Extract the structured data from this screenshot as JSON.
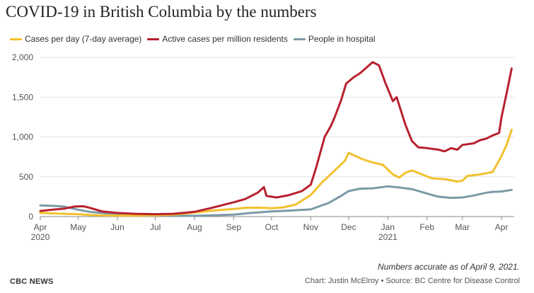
{
  "chart_data": {
    "type": "line",
    "title": "COVID-19 in British Columbia by the numbers",
    "xlabel": "",
    "ylabel": "",
    "x_range": [
      "2020-04-01",
      "2021-04-11"
    ],
    "ylim": [
      0,
      2000
    ],
    "y_ticks": [
      "0",
      "500",
      "1,000",
      "1,500",
      "2,000"
    ],
    "grid": true,
    "legend_position": "top-left",
    "x_ticks": [
      {
        "date": "2020-04-01",
        "label": "Apr",
        "sub": "2020"
      },
      {
        "date": "2020-05-01",
        "label": "May",
        "sub": ""
      },
      {
        "date": "2020-06-01",
        "label": "Jun",
        "sub": ""
      },
      {
        "date": "2020-07-01",
        "label": "Jul",
        "sub": ""
      },
      {
        "date": "2020-08-01",
        "label": "Aug",
        "sub": ""
      },
      {
        "date": "2020-09-01",
        "label": "Sep",
        "sub": ""
      },
      {
        "date": "2020-10-01",
        "label": "Oct",
        "sub": ""
      },
      {
        "date": "2020-11-01",
        "label": "Nov",
        "sub": ""
      },
      {
        "date": "2020-12-01",
        "label": "Dec",
        "sub": ""
      },
      {
        "date": "2021-01-01",
        "label": "Jan",
        "sub": "2021"
      },
      {
        "date": "2021-02-01",
        "label": "Feb",
        "sub": ""
      },
      {
        "date": "2021-03-01",
        "label": "Mar",
        "sub": ""
      },
      {
        "date": "2021-04-01",
        "label": "Apr",
        "sub": ""
      }
    ],
    "series": [
      {
        "name": "Cases per day (7-day average)",
        "color": "#f2c12e",
        "points": [
          [
            "2020-04-01",
            45
          ],
          [
            "2020-04-10",
            40
          ],
          [
            "2020-04-20",
            35
          ],
          [
            "2020-05-01",
            30
          ],
          [
            "2020-05-10",
            20
          ],
          [
            "2020-05-20",
            14
          ],
          [
            "2020-06-01",
            12
          ],
          [
            "2020-06-15",
            12
          ],
          [
            "2020-07-01",
            15
          ],
          [
            "2020-07-15",
            25
          ],
          [
            "2020-08-01",
            50
          ],
          [
            "2020-08-15",
            75
          ],
          [
            "2020-09-01",
            95
          ],
          [
            "2020-09-10",
            110
          ],
          [
            "2020-09-20",
            112
          ],
          [
            "2020-10-01",
            105
          ],
          [
            "2020-10-10",
            115
          ],
          [
            "2020-10-20",
            150
          ],
          [
            "2020-11-01",
            270
          ],
          [
            "2020-11-10",
            430
          ],
          [
            "2020-11-20",
            580
          ],
          [
            "2020-11-28",
            700
          ],
          [
            "2020-12-01",
            800
          ],
          [
            "2020-12-05",
            770
          ],
          [
            "2020-12-12",
            720
          ],
          [
            "2020-12-20",
            680
          ],
          [
            "2020-12-28",
            650
          ],
          [
            "2021-01-05",
            530
          ],
          [
            "2021-01-10",
            490
          ],
          [
            "2021-01-15",
            550
          ],
          [
            "2021-01-20",
            580
          ],
          [
            "2021-01-28",
            530
          ],
          [
            "2021-02-05",
            480
          ],
          [
            "2021-02-15",
            470
          ],
          [
            "2021-02-25",
            440
          ],
          [
            "2021-03-01",
            450
          ],
          [
            "2021-03-05",
            510
          ],
          [
            "2021-03-15",
            530
          ],
          [
            "2021-03-25",
            560
          ],
          [
            "2021-04-01",
            760
          ],
          [
            "2021-04-05",
            900
          ],
          [
            "2021-04-09",
            1090
          ]
        ]
      },
      {
        "name": "Active cases per million residents",
        "color": "#b8212f",
        "points": [
          [
            "2020-04-01",
            70
          ],
          [
            "2020-04-10",
            85
          ],
          [
            "2020-04-20",
            100
          ],
          [
            "2020-04-28",
            125
          ],
          [
            "2020-05-05",
            130
          ],
          [
            "2020-05-10",
            110
          ],
          [
            "2020-05-20",
            65
          ],
          [
            "2020-06-01",
            45
          ],
          [
            "2020-06-15",
            35
          ],
          [
            "2020-07-01",
            30
          ],
          [
            "2020-07-15",
            35
          ],
          [
            "2020-08-01",
            60
          ],
          [
            "2020-08-15",
            110
          ],
          [
            "2020-09-01",
            180
          ],
          [
            "2020-09-10",
            220
          ],
          [
            "2020-09-20",
            300
          ],
          [
            "2020-09-25",
            370
          ],
          [
            "2020-09-27",
            260
          ],
          [
            "2020-10-05",
            240
          ],
          [
            "2020-10-15",
            270
          ],
          [
            "2020-10-25",
            320
          ],
          [
            "2020-11-01",
            400
          ],
          [
            "2020-11-05",
            600
          ],
          [
            "2020-11-12",
            1000
          ],
          [
            "2020-11-17",
            1140
          ],
          [
            "2020-11-20",
            1250
          ],
          [
            "2020-11-25",
            1460
          ],
          [
            "2020-11-29",
            1670
          ],
          [
            "2020-12-05",
            1750
          ],
          [
            "2020-12-10",
            1800
          ],
          [
            "2020-12-15",
            1870
          ],
          [
            "2020-12-20",
            1940
          ],
          [
            "2020-12-25",
            1900
          ],
          [
            "2020-12-30",
            1680
          ],
          [
            "2021-01-05",
            1450
          ],
          [
            "2021-01-08",
            1500
          ],
          [
            "2021-01-15",
            1150
          ],
          [
            "2021-01-20",
            950
          ],
          [
            "2021-01-25",
            870
          ],
          [
            "2021-02-01",
            860
          ],
          [
            "2021-02-10",
            840
          ],
          [
            "2021-02-15",
            820
          ],
          [
            "2021-02-20",
            860
          ],
          [
            "2021-02-25",
            840
          ],
          [
            "2021-03-01",
            900
          ],
          [
            "2021-03-10",
            920
          ],
          [
            "2021-03-15",
            960
          ],
          [
            "2021-03-20",
            980
          ],
          [
            "2021-03-25",
            1020
          ],
          [
            "2021-03-30",
            1050
          ],
          [
            "2021-04-01",
            1250
          ],
          [
            "2021-04-05",
            1550
          ],
          [
            "2021-04-09",
            1860
          ]
        ]
      },
      {
        "name": "People in hospital",
        "color": "#7b9aa6",
        "points": [
          [
            "2020-04-01",
            140
          ],
          [
            "2020-04-10",
            135
          ],
          [
            "2020-04-20",
            125
          ],
          [
            "2020-05-01",
            85
          ],
          [
            "2020-05-10",
            60
          ],
          [
            "2020-05-20",
            45
          ],
          [
            "2020-06-01",
            30
          ],
          [
            "2020-06-15",
            20
          ],
          [
            "2020-07-01",
            15
          ],
          [
            "2020-07-15",
            12
          ],
          [
            "2020-08-01",
            10
          ],
          [
            "2020-08-15",
            15
          ],
          [
            "2020-09-01",
            25
          ],
          [
            "2020-09-15",
            45
          ],
          [
            "2020-10-01",
            65
          ],
          [
            "2020-10-15",
            75
          ],
          [
            "2020-11-01",
            90
          ],
          [
            "2020-11-15",
            170
          ],
          [
            "2020-11-25",
            260
          ],
          [
            "2020-12-01",
            320
          ],
          [
            "2020-12-10",
            350
          ],
          [
            "2020-12-20",
            355
          ],
          [
            "2021-01-01",
            380
          ],
          [
            "2021-01-10",
            365
          ],
          [
            "2021-01-20",
            345
          ],
          [
            "2021-02-01",
            290
          ],
          [
            "2021-02-10",
            250
          ],
          [
            "2021-02-20",
            235
          ],
          [
            "2021-03-01",
            240
          ],
          [
            "2021-03-10",
            265
          ],
          [
            "2021-03-20",
            300
          ],
          [
            "2021-03-25",
            310
          ],
          [
            "2021-04-01",
            315
          ],
          [
            "2021-04-09",
            335
          ]
        ]
      }
    ]
  },
  "footer": {
    "note": "Numbers accurate as of April 9, 2021.",
    "brand": "CBC NEWS",
    "credit": "Chart: Justin McElroy • Source: BC Centre for Disease Control"
  }
}
